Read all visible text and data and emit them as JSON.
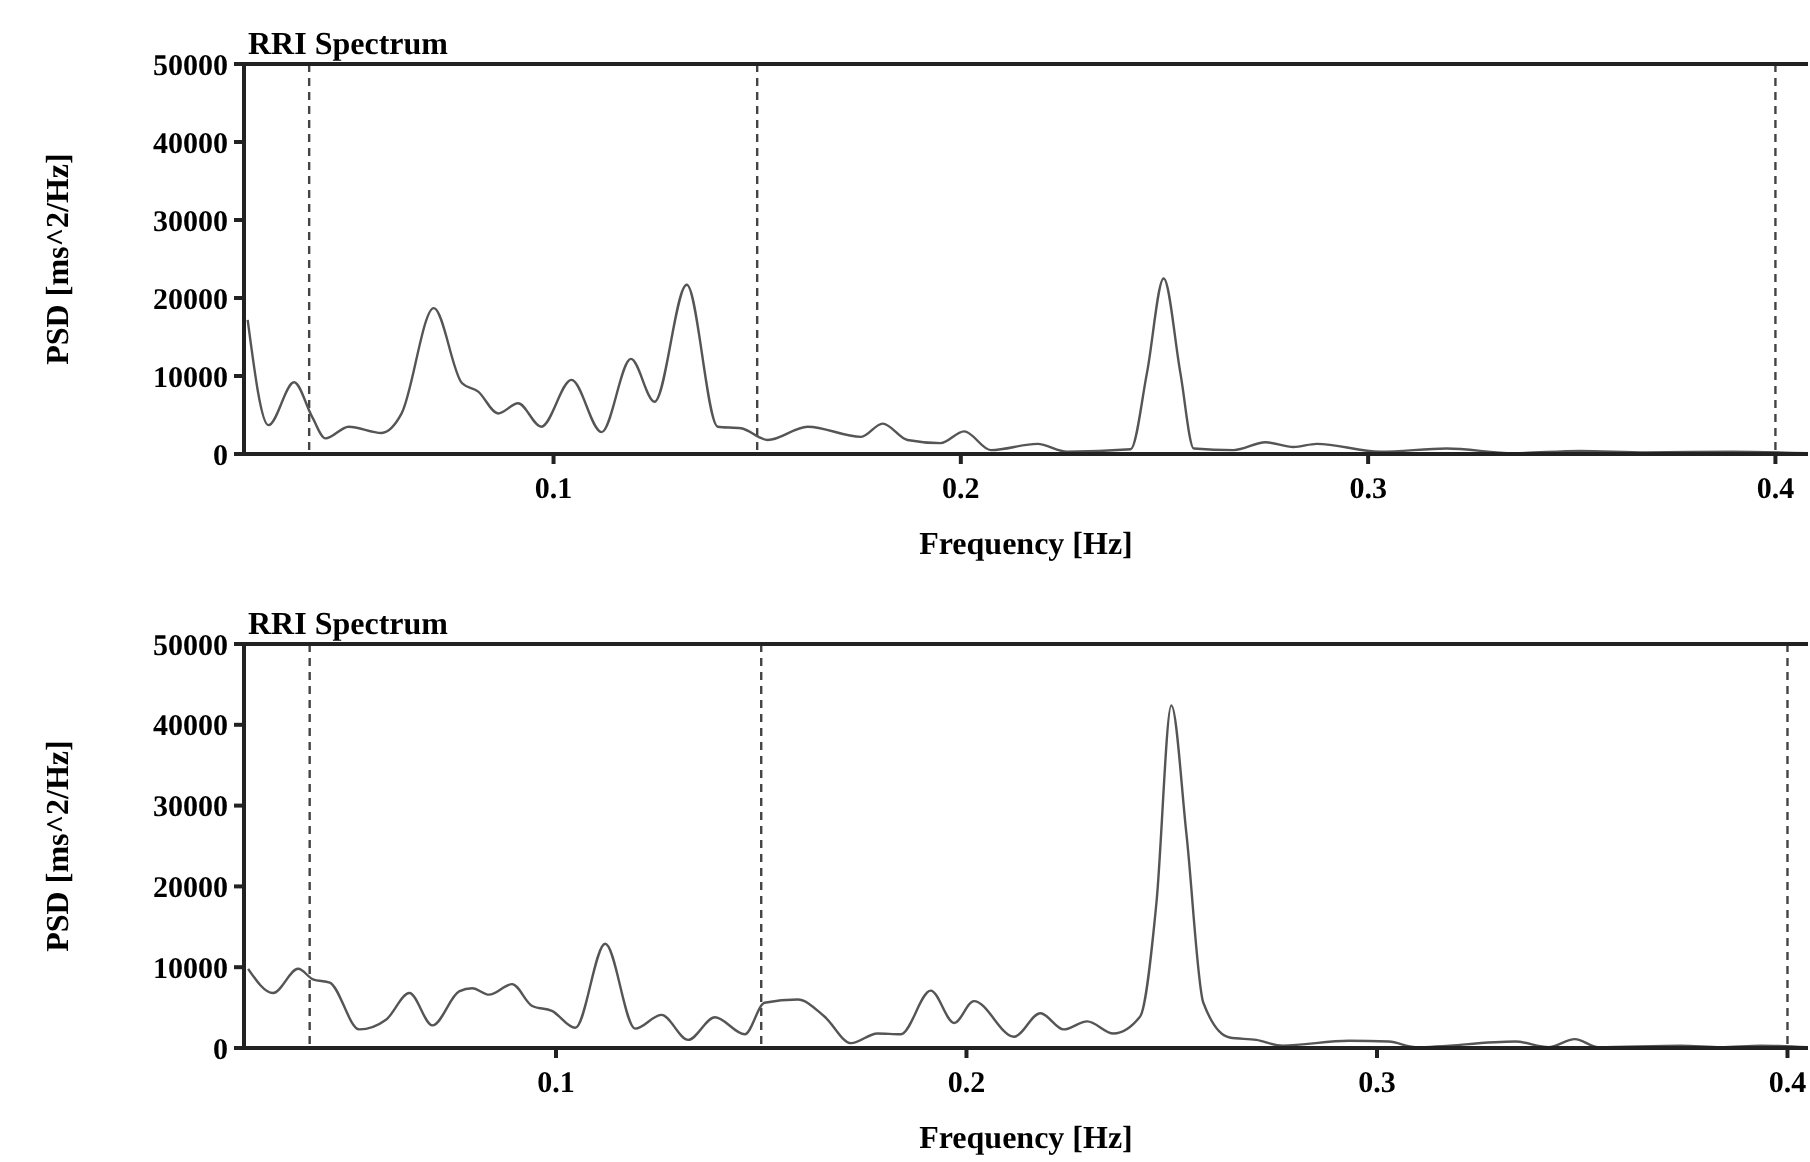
{
  "chart_data": [
    {
      "type": "line",
      "title": "RRI Spectrum",
      "xlabel": "Frequency [Hz]",
      "ylabel": "PSD [ms^2/Hz]",
      "xlim": [
        0.024,
        0.408
      ],
      "ylim": [
        0,
        50000
      ],
      "xticks": [
        0.1,
        0.2,
        0.3,
        0.4
      ],
      "yticks": [
        0,
        10000,
        20000,
        30000,
        40000,
        50000
      ],
      "x": [
        0.0249,
        0.03,
        0.0363,
        0.0407,
        0.044,
        0.0497,
        0.0578,
        0.0627,
        0.0706,
        0.0775,
        0.0815,
        0.0864,
        0.0913,
        0.097,
        0.1044,
        0.1118,
        0.119,
        0.1248,
        0.1327,
        0.1403,
        0.146,
        0.1526,
        0.1624,
        0.1755,
        0.1808,
        0.1869,
        0.195,
        0.2008,
        0.2074,
        0.2188,
        0.2261,
        0.2417,
        0.2457,
        0.2498,
        0.2539,
        0.2572,
        0.267,
        0.2748,
        0.2817,
        0.2874,
        0.303,
        0.3193,
        0.3357,
        0.352,
        0.3683,
        0.3895,
        0.408
      ],
      "series": [
        {
          "color": "#555555",
          "values": [
            17200,
            3700,
            9200,
            4800,
            2000,
            3500,
            2700,
            5200,
            18700,
            9100,
            8000,
            5200,
            6500,
            3500,
            9500,
            2800,
            12200,
            6700,
            21700,
            3500,
            3300,
            1800,
            3500,
            2200,
            3900,
            1800,
            1400,
            2900,
            500,
            1300,
            300,
            600,
            10400,
            22500,
            10400,
            700,
            500,
            1500,
            900,
            1300,
            300,
            700,
            100,
            400,
            200,
            300,
            100
          ]
        }
      ],
      "ref_lines": [
        {
          "axis": "x",
          "value": 0.04,
          "line_style": "dashed",
          "color": "#444444"
        },
        {
          "axis": "x",
          "value": 0.15,
          "line_style": "dashed",
          "color": "#444444"
        },
        {
          "axis": "x",
          "value": 0.4,
          "line_style": "dashed",
          "color": "#444444"
        }
      ]
    },
    {
      "type": "line",
      "title": "RRI Spectrum",
      "xlabel": "Frequency [Hz]",
      "ylabel": "PSD [ms^2/Hz]",
      "xlim": [
        0.024,
        0.405
      ],
      "ylim": [
        0,
        50000
      ],
      "xticks": [
        0.1,
        0.2,
        0.3,
        0.4
      ],
      "yticks": [
        0,
        10000,
        20000,
        30000,
        40000,
        50000
      ],
      "x": [
        0.025,
        0.0311,
        0.0372,
        0.0408,
        0.0449,
        0.0521,
        0.0586,
        0.0643,
        0.0699,
        0.0764,
        0.0796,
        0.0837,
        0.0893,
        0.0942,
        0.099,
        0.1047,
        0.112,
        0.1193,
        0.1257,
        0.1322,
        0.1387,
        0.146,
        0.1508,
        0.1589,
        0.1654,
        0.1719,
        0.1783,
        0.184,
        0.1913,
        0.197,
        0.2018,
        0.2116,
        0.218,
        0.2237,
        0.2294,
        0.2358,
        0.2423,
        0.2463,
        0.2499,
        0.2536,
        0.2577,
        0.2641,
        0.2706,
        0.277,
        0.2932,
        0.3029,
        0.3094,
        0.3337,
        0.3418,
        0.3482,
        0.3539,
        0.3741,
        0.3838,
        0.3935,
        0.405
      ],
      "series": [
        {
          "color": "#555555",
          "values": [
            9800,
            6800,
            9800,
            8500,
            8100,
            2300,
            3500,
            6800,
            2800,
            7000,
            7400,
            6600,
            7900,
            5200,
            4600,
            2500,
            12900,
            2400,
            4100,
            1000,
            3800,
            1700,
            5600,
            6000,
            3900,
            600,
            1800,
            1700,
            7100,
            3100,
            5800,
            1400,
            4300,
            2300,
            3300,
            1800,
            3900,
            18100,
            42400,
            26400,
            5600,
            1300,
            1000,
            300,
            900,
            800,
            100,
            800,
            100,
            1100,
            100,
            300,
            100,
            300,
            100
          ]
        }
      ],
      "ref_lines": [
        {
          "axis": "x",
          "value": 0.04,
          "line_style": "dashed",
          "color": "#444444"
        },
        {
          "axis": "x",
          "value": 0.15,
          "line_style": "dashed",
          "color": "#444444"
        },
        {
          "axis": "x",
          "value": 0.4,
          "line_style": "dashed",
          "color": "#444444"
        }
      ]
    }
  ]
}
